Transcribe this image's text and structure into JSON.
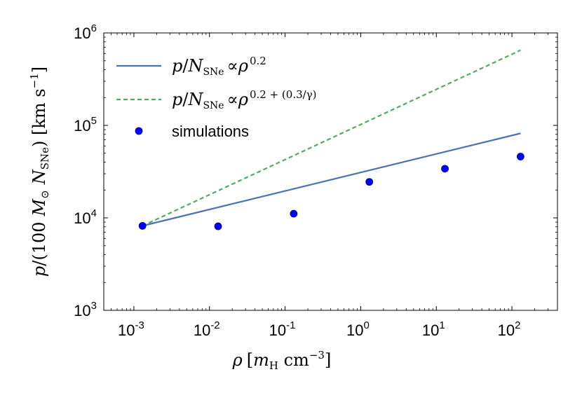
{
  "chart_data": {
    "type": "line",
    "xscale": "log",
    "yscale": "log",
    "xlim": [
      0.0004,
      400
    ],
    "ylim": [
      1000,
      1000000
    ],
    "x_ticks": [
      {
        "value": 0.001,
        "base": "10",
        "exp": "-3"
      },
      {
        "value": 0.01,
        "base": "10",
        "exp": "-2"
      },
      {
        "value": 0.1,
        "base": "10",
        "exp": "-1"
      },
      {
        "value": 1,
        "base": "10",
        "exp": "0"
      },
      {
        "value": 10,
        "base": "10",
        "exp": "1"
      },
      {
        "value": 100,
        "base": "10",
        "exp": "2"
      }
    ],
    "y_ticks": [
      {
        "value": 1000,
        "base": "10",
        "exp": "3"
      },
      {
        "value": 10000,
        "base": "10",
        "exp": "4"
      },
      {
        "value": 100000,
        "base": "10",
        "exp": "5"
      },
      {
        "value": 1000000,
        "base": "10",
        "exp": "6"
      }
    ],
    "xlabel": {
      "rho": "ρ",
      "open": "[",
      "m": "m",
      "H": "H",
      "cm": " cm",
      "exp": "−3",
      "close": "]"
    },
    "ylabel": {
      "p": "p",
      "open": "/(100",
      "M": "M",
      "odot": "⊙",
      "N": "N",
      "SNe": "SNe",
      "close": ") [km s",
      "exp": "−1",
      "end": "]"
    },
    "series": [
      {
        "name": "p/N_SNe ∝ ρ^0.2",
        "style": "solid",
        "color": "#4c72b0",
        "x": [
          0.0013,
          130
        ],
        "y": [
          8200,
          82000
        ],
        "legend": {
          "p": "p",
          "slash": "/",
          "N": "N",
          "SNe": "SNe",
          "prop": "∝",
          "rho": "ρ",
          "exp": "0.2"
        }
      },
      {
        "name": "p/N_SNe ∝ ρ^(0.2+(0.3/γ))",
        "style": "dashed",
        "color": "#55a868",
        "x": [
          0.0013,
          130
        ],
        "y": [
          8200,
          650000
        ],
        "legend": {
          "p": "p",
          "slash": "/",
          "N": "N",
          "SNe": "SNe",
          "prop": "∝",
          "rho": "ρ",
          "exp": "0.2 + (0.3/γ)"
        }
      },
      {
        "name": "simulations",
        "style": "markers",
        "color": "#0000ff",
        "x": [
          0.0013,
          0.013,
          0.13,
          1.3,
          13,
          130
        ],
        "y": [
          8200,
          8100,
          11100,
          24500,
          34000,
          46000
        ],
        "legend": {
          "label": "simulations"
        }
      }
    ],
    "legend_position": "top-left",
    "grid": false
  }
}
